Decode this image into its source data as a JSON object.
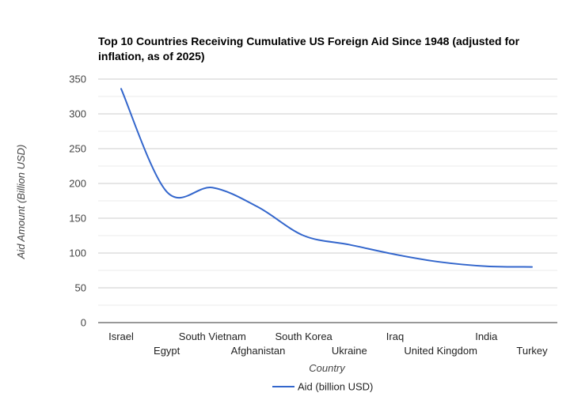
{
  "chart_data": {
    "type": "line",
    "title": "Top 10 Countries Receiving Cumulative US Foreign Aid Since 1948 (adjusted for inflation, as of 2025)",
    "title_lines": [
      "Top 10 Countries Receiving Cumulative US Foreign Aid Since 1948 (adjusted for",
      "inflation, as of 2025)"
    ],
    "xlabel": "Country",
    "ylabel": "Aid Amount (Billion USD)",
    "categories": [
      "Israel",
      "Egypt",
      "South Vietnam",
      "Afghanistan",
      "South Korea",
      "Ukraine",
      "Iraq",
      "United Kingdom",
      "India",
      "Turkey"
    ],
    "series": [
      {
        "name": "Aid (billion USD)",
        "values": [
          336,
          188,
          194,
          166,
          125,
          112,
          98,
          87,
          81,
          80
        ],
        "color": "#3366cc"
      }
    ],
    "ylim": [
      0,
      350
    ],
    "yticks": [
      0,
      50,
      100,
      150,
      200,
      250,
      300,
      350
    ],
    "grid": true,
    "legend_position": "bottom",
    "colors": {
      "line": "#3366cc",
      "major_grid": "#cccccc",
      "minor_grid": "#ebebeb",
      "axis": "#333333",
      "text": "#222222",
      "muted_text": "#444444"
    }
  }
}
